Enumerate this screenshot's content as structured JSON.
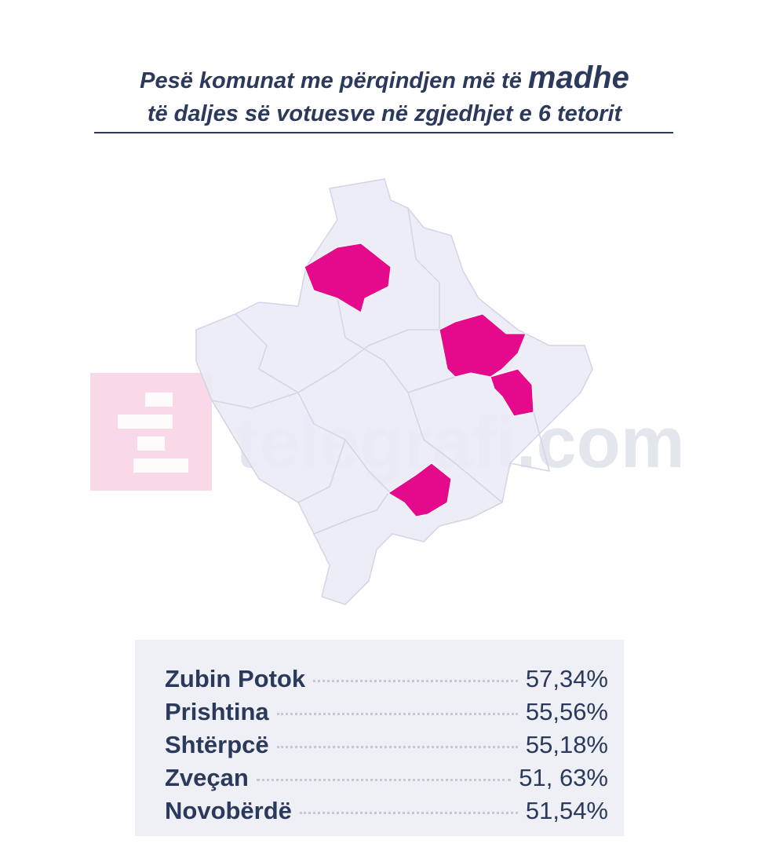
{
  "header": {
    "title_line1": "Pesë komunat me përqindjen më të",
    "title_emphasis": "madhe",
    "title_line2": "të daljes së votuesve në zgjedhjet e 6 tetorit"
  },
  "watermark": "telegrafi.com",
  "table": {
    "rows": [
      [
        "Zubin Potok",
        "57,34%"
      ],
      [
        "Prishtina",
        "55,56%"
      ],
      [
        "Shtërpcë",
        "55,18%"
      ],
      [
        "Zveçan",
        "51, 63%"
      ],
      [
        "Novobërdë",
        "51,54%"
      ]
    ]
  }
}
